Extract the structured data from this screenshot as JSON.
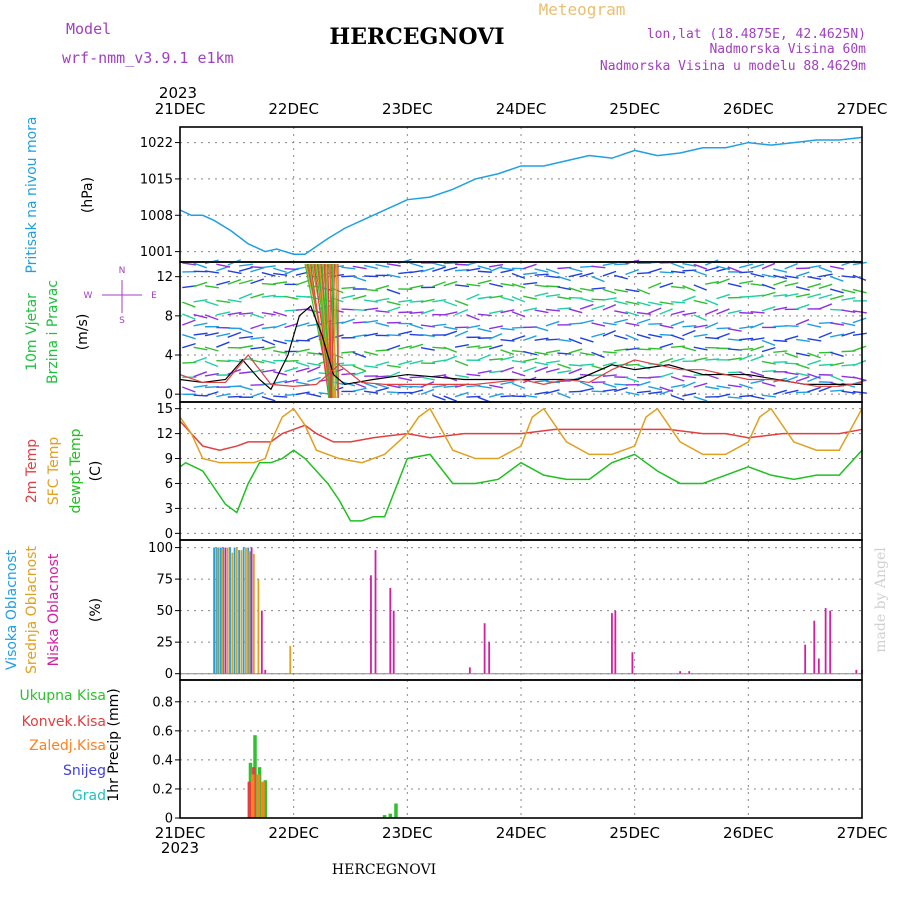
{
  "header": {
    "model_label": "Model",
    "model_name": "wrf-nmm_v3.9.1 e1km",
    "station": "HERCEGNOVI",
    "meteogram": "Meteogram",
    "lonlat": "lon,lat (18.4875E, 42.4625N)",
    "elevation": "Nadmorska Visina 60m",
    "model_elevation": "Nadmorska Visina u modelu 88.4629m",
    "footer_station": "HERCEGNOVI",
    "credit": "made by Angel",
    "colors": {
      "model": "#a040c0",
      "station": "#000000",
      "meteogram": "#e8c070",
      "info": "#a040c0",
      "credit": "#d0d0d0"
    }
  },
  "time_axis": {
    "year": "2023",
    "labels": [
      "21DEC",
      "22DEC",
      "23DEC",
      "24DEC",
      "25DEC",
      "26DEC",
      "27DEC"
    ],
    "range_days": [
      0,
      6
    ]
  },
  "chart_data": [
    {
      "type": "line",
      "panel": "pressure",
      "ylabel": [
        "Pritisak na nivou mora",
        "(hPa)"
      ],
      "ylabel_colors": [
        "#20a0e0",
        "#000000"
      ],
      "yticks": [
        1001,
        1008,
        1015,
        1022
      ],
      "ylim": [
        999,
        1025
      ],
      "grid": true,
      "series": [
        {
          "color": "#20a0e0",
          "x": [
            0,
            0.1,
            0.2,
            0.3,
            0.45,
            0.6,
            0.75,
            0.85,
            1.0,
            1.1,
            1.2,
            1.3,
            1.45,
            1.6,
            1.75,
            1.9,
            2.0,
            2.2,
            2.4,
            2.6,
            2.8,
            3.0,
            3.2,
            3.4,
            3.6,
            3.8,
            4.0,
            4.2,
            4.4,
            4.6,
            4.8,
            5.0,
            5.2,
            5.4,
            5.6,
            5.8,
            6.0
          ],
          "values": [
            1009,
            1008,
            1008,
            1007,
            1005,
            1002.5,
            1001,
            1001.5,
            1000.5,
            1000.5,
            1002,
            1003.5,
            1005.5,
            1007,
            1008.5,
            1010,
            1011,
            1011.5,
            1013,
            1015,
            1016,
            1017.5,
            1017.5,
            1018.5,
            1019.5,
            1019,
            1020.5,
            1019.5,
            1020,
            1021,
            1021,
            1022,
            1021.5,
            1022,
            1022.5,
            1022.5,
            1023
          ]
        }
      ]
    },
    {
      "type": "line",
      "panel": "wind",
      "ylabel": [
        "10m Vjetar",
        "Brzina i Pravac",
        "(m/s)"
      ],
      "ylabel_colors": [
        "#20c040",
        "#20c040",
        "#000000"
      ],
      "compass": [
        "N",
        "W",
        "E",
        "S"
      ],
      "yticks": [
        0,
        4,
        8,
        12
      ],
      "ylim": [
        -0.8,
        13.5
      ],
      "grid": true,
      "barb_colors": [
        "#2040e0",
        "#20a0e0",
        "#9030e0",
        "#20d0a0",
        "#30c030",
        "#e0a020",
        "#e04040"
      ],
      "series": [
        {
          "name": "",
          "color": "#000000",
          "x": [
            0,
            0.2,
            0.4,
            0.55,
            0.7,
            0.8,
            0.95,
            1.05,
            1.15,
            1.25,
            1.35,
            1.45,
            1.55,
            1.7,
            2.0,
            2.5,
            3.0,
            3.5,
            3.8,
            4.0,
            4.3,
            4.6,
            5.0,
            5.5,
            6.0
          ],
          "values": [
            1.5,
            1.2,
            1.5,
            3.5,
            1.5,
            0.5,
            4,
            8,
            9,
            6,
            2,
            1,
            1.2,
            1.5,
            2,
            1.5,
            1.5,
            1.5,
            3,
            2.5,
            3,
            2,
            2,
            1,
            1
          ]
        },
        {
          "name": "",
          "color": "#e04040",
          "x": [
            0,
            0.2,
            0.4,
            0.6,
            0.8,
            1.0,
            1.2,
            1.4,
            1.6,
            1.8,
            2.0,
            2.3,
            2.6,
            3.0,
            3.2,
            3.4,
            3.6,
            3.8,
            4.0,
            4.2,
            4.4,
            4.6,
            4.8,
            5.0,
            5.2,
            5.4,
            5.6,
            5.8,
            6.0
          ],
          "values": [
            2,
            1.2,
            1.2,
            4,
            1,
            0.8,
            1,
            3,
            1.2,
            1,
            1,
            1,
            1,
            1.5,
            1,
            1.5,
            1.2,
            2.5,
            3.5,
            3,
            2.5,
            2.5,
            2,
            1.5,
            1.5,
            1.2,
            0.8,
            0.8,
            1.2
          ]
        }
      ]
    },
    {
      "type": "line",
      "panel": "temperature",
      "ylabel": [
        "2m Temp",
        "SFC Temp",
        "dewpt Temp",
        "(C)"
      ],
      "ylabel_colors": [
        "#e04040",
        "#e0a020",
        "#20c020",
        "#000000"
      ],
      "yticks": [
        0,
        3,
        6,
        9,
        12,
        15
      ],
      "ylim": [
        -0.8,
        15.8
      ],
      "grid": true,
      "series": [
        {
          "name": "2m Temp",
          "color": "#e04040",
          "x": [
            0,
            0.1,
            0.2,
            0.35,
            0.5,
            0.6,
            0.7,
            0.8,
            0.9,
            1.0,
            1.1,
            1.2,
            1.35,
            1.5,
            1.7,
            2.0,
            2.2,
            2.5,
            2.8,
            3.0,
            3.3,
            3.6,
            3.8,
            4.0,
            4.3,
            4.6,
            4.8,
            5.0,
            5.3,
            5.6,
            5.8,
            6.0
          ],
          "values": [
            13.5,
            12,
            10.5,
            10,
            10.5,
            11,
            11,
            11,
            12,
            12.5,
            13,
            12,
            11,
            11,
            11.5,
            12,
            11.5,
            12,
            12,
            12,
            12.5,
            12.5,
            12.5,
            12.5,
            12.5,
            12,
            12,
            11.5,
            12,
            12,
            12,
            12.5
          ]
        },
        {
          "name": "SFC Temp",
          "color": "#e0a020",
          "x": [
            0,
            0.1,
            0.2,
            0.35,
            0.5,
            0.65,
            0.75,
            0.8,
            0.9,
            1.0,
            1.1,
            1.2,
            1.4,
            1.6,
            1.8,
            2.0,
            2.1,
            2.2,
            2.4,
            2.6,
            2.8,
            3.0,
            3.1,
            3.2,
            3.4,
            3.6,
            3.8,
            4.0,
            4.1,
            4.2,
            4.4,
            4.6,
            4.8,
            5.0,
            5.1,
            5.2,
            5.4,
            5.6,
            5.8,
            6.0
          ],
          "values": [
            14,
            12,
            9,
            8.5,
            8.5,
            8.5,
            9,
            11,
            14,
            15,
            13,
            10,
            9,
            8.5,
            9.5,
            12,
            14,
            15,
            10,
            9,
            9,
            10.5,
            14,
            15,
            11,
            9.5,
            9.5,
            10.5,
            14,
            15,
            11,
            9.5,
            9.5,
            11,
            14,
            15,
            11,
            10,
            10,
            15
          ]
        },
        {
          "name": "dewpt Temp",
          "color": "#20c020",
          "x": [
            0,
            0.05,
            0.2,
            0.4,
            0.5,
            0.6,
            0.7,
            0.8,
            0.9,
            1.0,
            1.1,
            1.2,
            1.3,
            1.4,
            1.5,
            1.6,
            1.7,
            1.8,
            2.0,
            2.2,
            2.4,
            2.6,
            2.8,
            3.0,
            3.2,
            3.4,
            3.6,
            3.8,
            4.0,
            4.2,
            4.4,
            4.6,
            4.8,
            5.0,
            5.2,
            5.4,
            5.6,
            5.8,
            6.0
          ],
          "values": [
            8,
            8.5,
            7.5,
            3.5,
            2.5,
            6,
            8.5,
            8.5,
            9,
            10,
            9,
            7.5,
            6,
            4,
            1.5,
            1.5,
            2,
            2,
            9,
            9.5,
            6,
            6,
            6.5,
            8.5,
            7,
            6.5,
            6.5,
            8.5,
            9.5,
            7.5,
            6,
            6,
            7,
            8,
            7,
            6.5,
            7,
            7,
            10
          ]
        }
      ]
    },
    {
      "type": "bar",
      "panel": "cloud",
      "ylabel": [
        "Visoka Oblacnost",
        "Srednja Oblacnost",
        "Niska Oblacnost",
        "(%)"
      ],
      "ylabel_colors": [
        "#20a0e0",
        "#e0a020",
        "#d020a0",
        "#000000"
      ],
      "yticks": [
        0,
        25,
        50,
        75,
        100
      ],
      "ylim": [
        -5,
        106
      ],
      "grid": true,
      "series": [
        {
          "name": "Visoka Oblacnost",
          "color": "#20a0e0",
          "x": [
            0.3,
            0.32,
            0.34,
            0.36,
            0.38,
            0.44,
            0.48,
            0.52,
            0.56,
            0.6,
            0.62
          ],
          "values": [
            100,
            100,
            100,
            100,
            100,
            100,
            100,
            98,
            100,
            100,
            97
          ]
        },
        {
          "name": "Srednja Oblacnost",
          "color": "#e0a020",
          "x": [
            0.33,
            0.37,
            0.42,
            0.46,
            0.5,
            0.54,
            0.58,
            0.61,
            0.65,
            0.69,
            0.97
          ],
          "values": [
            100,
            98,
            100,
            96,
            100,
            98,
            100,
            97,
            95,
            75,
            22
          ]
        },
        {
          "name": "Niska Oblacnost",
          "color": "#d020a0",
          "x": [
            0.4,
            0.63,
            0.72,
            0.75,
            1.68,
            1.72,
            1.85,
            1.88,
            2.55,
            2.68,
            2.72,
            3.8,
            3.83,
            3.98,
            4.4,
            4.48,
            5.5,
            5.58,
            5.62,
            5.68,
            5.72,
            5.95,
            6.0
          ],
          "values": [
            100,
            100,
            50,
            3,
            78,
            98,
            68,
            50,
            5,
            40,
            25,
            48,
            50,
            17,
            2,
            2,
            23,
            42,
            12,
            52,
            50,
            3,
            3
          ]
        }
      ]
    },
    {
      "type": "bar",
      "panel": "precip",
      "ylabel": [
        "1hr Precip (mm)"
      ],
      "ylabel_colors": [
        "#000000"
      ],
      "legend": [
        "Ukupna Kisa",
        "Konvek.Kisa",
        "Zaledj.Kisa",
        "Snijeg",
        "Grad"
      ],
      "legend_colors": [
        "#30c030",
        "#e04040",
        "#ff8020",
        "#4040e0",
        "#20c0c0"
      ],
      "yticks": [
        0,
        0.2,
        0.4,
        0.6,
        0.8
      ],
      "ylim": [
        0,
        0.95
      ],
      "grid": true,
      "series": [
        {
          "name": "Ukupna Kisa",
          "color": "#30c030",
          "x": [
            0.62,
            0.66,
            0.7,
            0.75,
            1.8,
            1.85,
            1.9
          ],
          "values": [
            0.38,
            0.57,
            0.35,
            0.26,
            0.02,
            0.03,
            0.1
          ]
        },
        {
          "name": "Konvek.Kisa",
          "color": "#e04040",
          "x": [
            0.61,
            0.65
          ],
          "values": [
            0.25,
            0.35
          ]
        },
        {
          "name": "Zaledj.Kisa",
          "color": "#ff8020",
          "x": [
            0.64,
            0.69,
            0.73
          ],
          "values": [
            0.3,
            0.3,
            0.25
          ]
        }
      ]
    }
  ]
}
